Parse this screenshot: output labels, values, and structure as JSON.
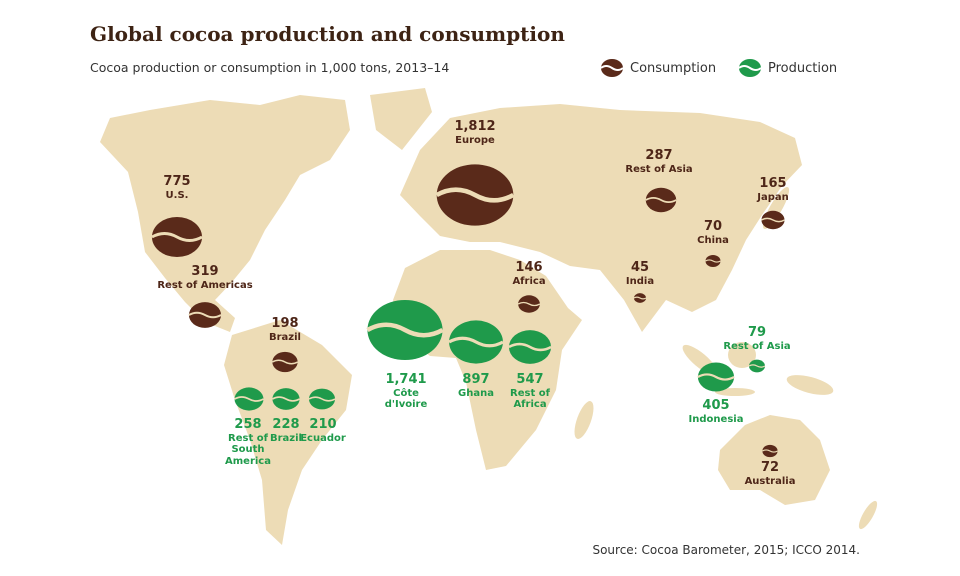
{
  "title": "Global cocoa production and consumption",
  "subtitle": "Cocoa production or consumption in 1,000 tons, 2013–14",
  "legend": {
    "consumption": "Consumption",
    "production": "Production"
  },
  "source": "Source: Cocoa Barometer, 2015; ICCO 2014.",
  "colors": {
    "consumption": "#5a2a1a",
    "production": "#1f9a4b",
    "land": "#eddcb6"
  },
  "consumption": [
    {
      "value": "775",
      "name": "U.S.",
      "amount": 775
    },
    {
      "value": "319",
      "name": "Rest of Americas",
      "amount": 319
    },
    {
      "value": "198",
      "name": "Brazil",
      "amount": 198
    },
    {
      "value": "1,812",
      "name": "Europe",
      "amount": 1812
    },
    {
      "value": "146",
      "name": "Africa",
      "amount": 146
    },
    {
      "value": "287",
      "name": "Rest of Asia",
      "amount": 287
    },
    {
      "value": "165",
      "name": "Japan",
      "amount": 165
    },
    {
      "value": "70",
      "name": "China",
      "amount": 70
    },
    {
      "value": "45",
      "name": "India",
      "amount": 45
    },
    {
      "value": "72",
      "name": "Australia",
      "amount": 72
    }
  ],
  "production": [
    {
      "value": "1,741",
      "name": "Côte d'Ivoire",
      "amount": 1741
    },
    {
      "value": "897",
      "name": "Ghana",
      "amount": 897
    },
    {
      "value": "547",
      "name": "Rest of Africa",
      "amount": 547
    },
    {
      "value": "258",
      "name": "Rest of South America",
      "amount": 258
    },
    {
      "value": "228",
      "name": "Brazil",
      "amount": 228
    },
    {
      "value": "210",
      "name": "Ecuador",
      "amount": 210
    },
    {
      "value": "405",
      "name": "Indonesia",
      "amount": 405
    },
    {
      "value": "79",
      "name": "Rest of Asia",
      "amount": 79
    }
  ]
}
